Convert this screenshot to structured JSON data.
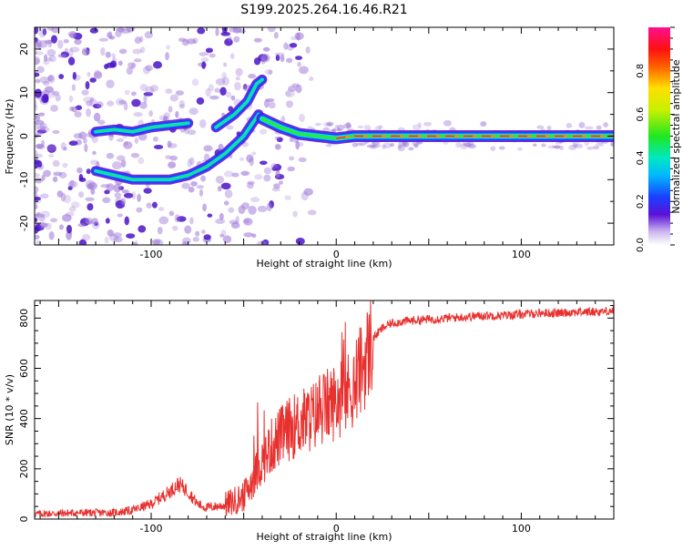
{
  "title": "S199.2025.264.16.46.R21",
  "colors": {
    "snr_line": "#e8312f",
    "ridge": "#e8312f",
    "scatter": "#a07ad8",
    "scatter_dark": "#4b14c8"
  },
  "chart_data": [
    {
      "type": "heatmap",
      "xlabel": "Height of straight line (km)",
      "ylabel": "Frequency (Hz)",
      "xlim": [
        -163,
        150
      ],
      "ylim": [
        -25,
        25
      ],
      "xticks": [
        "-100",
        "0",
        "100"
      ],
      "yticks": [
        "-20",
        "-10",
        "0",
        "10",
        "20"
      ],
      "colorbar": {
        "label": "Normalized spectral amplitude",
        "range": [
          0,
          1
        ],
        "ticks": [
          "0.0",
          "0.2",
          "0.4",
          "0.6",
          "0.8"
        ]
      },
      "tracks": [
        {
          "name": "upper-branch",
          "x": [
            -130,
            -120,
            -110,
            -100,
            -90,
            -80
          ],
          "y": [
            1,
            1.5,
            1,
            2,
            2.5,
            3
          ]
        },
        {
          "name": "lower-branch",
          "x": [
            -130,
            -120,
            -110,
            -100,
            -90,
            -80,
            -70,
            -60,
            -50,
            -42
          ],
          "y": [
            -8,
            -9,
            -10,
            -10,
            -10,
            -9,
            -7,
            -4,
            0,
            5
          ]
        },
        {
          "name": "rising-branch",
          "x": [
            -65,
            -55,
            -48,
            -43,
            -40
          ],
          "y": [
            2,
            5,
            8,
            12,
            13
          ]
        },
        {
          "name": "main-ridge",
          "x": [
            -40,
            -30,
            -20,
            -10,
            0,
            10,
            20,
            40,
            60,
            80,
            100,
            120,
            150
          ],
          "y": [
            4,
            2,
            0.5,
            0,
            -0.5,
            0,
            0,
            0,
            0,
            0,
            0,
            0,
            0
          ]
        }
      ]
    },
    {
      "type": "line",
      "xlabel": "Height of straight line (km)",
      "ylabel": "SNR (10 * v/v)",
      "xlim": [
        -163,
        150
      ],
      "ylim": [
        0,
        870
      ],
      "xticks": [
        "-100",
        "0",
        "100"
      ],
      "yticks": [
        "0",
        "200",
        "400",
        "600",
        "800"
      ],
      "series": [
        {
          "name": "SNR",
          "x": [
            -163,
            -140,
            -120,
            -110,
            -100,
            -90,
            -85,
            -80,
            -75,
            -70,
            -60,
            -50,
            -45,
            -40,
            -35,
            -30,
            -25,
            -20,
            -15,
            -10,
            -5,
            0,
            5,
            10,
            15,
            20,
            25,
            30,
            40,
            50,
            60,
            70,
            80,
            90,
            100,
            110,
            120,
            130,
            140,
            150
          ],
          "y": [
            20,
            25,
            25,
            35,
            60,
            110,
            140,
            110,
            60,
            45,
            55,
            90,
            160,
            230,
            290,
            330,
            360,
            380,
            400,
            420,
            450,
            470,
            490,
            540,
            620,
            720,
            760,
            780,
            790,
            795,
            800,
            805,
            810,
            810,
            815,
            820,
            820,
            825,
            825,
            830
          ]
        }
      ]
    }
  ]
}
